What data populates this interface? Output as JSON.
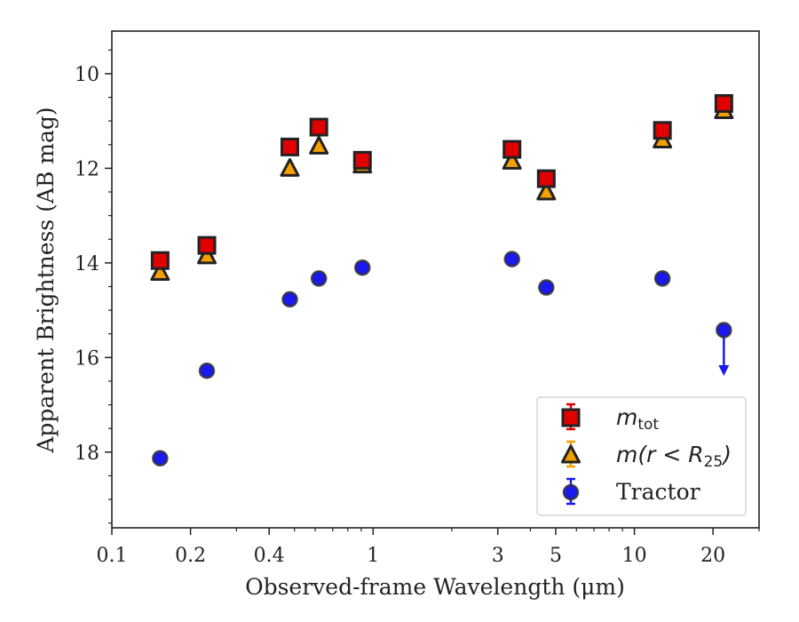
{
  "chart_data": {
    "type": "scatter",
    "xlabel": "Observed-frame Wavelength (μm)",
    "ylabel": "Apparent Brightness (AB mag)",
    "x_scale": "log",
    "xlim": [
      0.1,
      30
    ],
    "ylim": [
      19.6,
      9.1
    ],
    "y_inverted": true,
    "x_ticks": [
      {
        "value": 0.1,
        "label": "0.1"
      },
      {
        "value": 0.2,
        "label": "0.2"
      },
      {
        "value": 0.4,
        "label": "0.4"
      },
      {
        "value": 1,
        "label": "1"
      },
      {
        "value": 3,
        "label": "3"
      },
      {
        "value": 5,
        "label": "5"
      },
      {
        "value": 10,
        "label": "10"
      },
      {
        "value": 20,
        "label": "20"
      }
    ],
    "y_ticks": [
      {
        "value": 10,
        "label": "10"
      },
      {
        "value": 12,
        "label": "12"
      },
      {
        "value": 14,
        "label": "14"
      },
      {
        "value": 16,
        "label": "16"
      },
      {
        "value": 18,
        "label": "18"
      }
    ],
    "grid": false,
    "legend_position": "bottom-right",
    "series": [
      {
        "name": "m_tot",
        "legend_main": "m",
        "legend_sub": "tot",
        "marker": "square",
        "color": "#e00000",
        "edge": "#222222",
        "points": [
          {
            "x": 0.153,
            "y": 13.95
          },
          {
            "x": 0.231,
            "y": 13.63
          },
          {
            "x": 0.48,
            "y": 11.55
          },
          {
            "x": 0.62,
            "y": 11.13
          },
          {
            "x": 0.91,
            "y": 11.83
          },
          {
            "x": 3.4,
            "y": 11.6
          },
          {
            "x": 4.6,
            "y": 12.22
          },
          {
            "x": 12.8,
            "y": 11.2
          },
          {
            "x": 22.0,
            "y": 10.63
          }
        ]
      },
      {
        "name": "m(r < R_25)",
        "legend_main": "m(r < R",
        "legend_sub": "25",
        "legend_tail": ")",
        "marker": "triangle",
        "color": "#f5a000",
        "edge": "#222222",
        "points": [
          {
            "x": 0.153,
            "y": 14.2
          },
          {
            "x": 0.231,
            "y": 13.85
          },
          {
            "x": 0.48,
            "y": 12.0
          },
          {
            "x": 0.62,
            "y": 11.53
          },
          {
            "x": 0.91,
            "y": 11.93
          },
          {
            "x": 3.4,
            "y": 11.85
          },
          {
            "x": 4.6,
            "y": 12.5
          },
          {
            "x": 12.8,
            "y": 11.4
          },
          {
            "x": 22.0,
            "y": 10.78
          }
        ]
      },
      {
        "name": "Tractor",
        "legend_main": "Tractor",
        "marker": "circle",
        "color": "#1a1aee",
        "edge": "#333333",
        "points": [
          {
            "x": 0.153,
            "y": 18.13
          },
          {
            "x": 0.231,
            "y": 16.28
          },
          {
            "x": 0.48,
            "y": 14.77
          },
          {
            "x": 0.62,
            "y": 14.33
          },
          {
            "x": 0.91,
            "y": 14.1
          },
          {
            "x": 3.4,
            "y": 13.92
          },
          {
            "x": 4.6,
            "y": 14.52
          },
          {
            "x": 12.8,
            "y": 14.33
          },
          {
            "x": 22.0,
            "y": 15.42,
            "upper_limit_to": 16.35
          }
        ]
      }
    ]
  }
}
